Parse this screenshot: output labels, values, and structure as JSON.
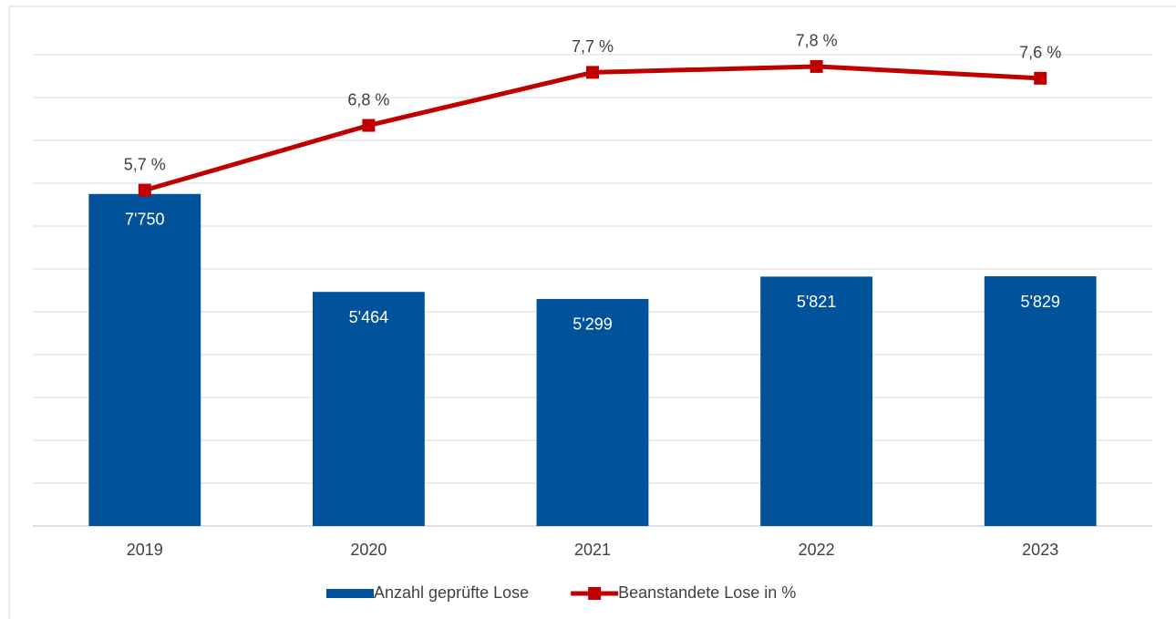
{
  "chart_data": {
    "type": "bar+line",
    "categories": [
      "2019",
      "2020",
      "2021",
      "2022",
      "2023"
    ],
    "series": [
      {
        "name": "Anzahl geprüfte Lose",
        "type": "bar",
        "color": "#00539b",
        "values": [
          7750,
          5464,
          5299,
          5821,
          5829
        ],
        "value_labels": [
          "7'750",
          "5'464",
          "5'299",
          "5'821",
          "5'829"
        ]
      },
      {
        "name": "Beanstandete Lose in %",
        "type": "line",
        "axis": "y2",
        "color": "#c00000",
        "values": [
          5.7,
          6.8,
          7.7,
          7.8,
          7.6
        ],
        "value_labels": [
          "5,7 %",
          "6,8 %",
          "7,7 %",
          "7,8 %",
          "7,6 %"
        ]
      }
    ],
    "ylim": [
      0,
      11000
    ],
    "yticks": [
      0,
      1000,
      2000,
      3000,
      4000,
      5000,
      6000,
      7000,
      8000,
      9000,
      10000,
      11000
    ],
    "y2lim": [
      0,
      8
    ],
    "grid": true,
    "tick_labels_shown": false,
    "legend": "bottom"
  }
}
